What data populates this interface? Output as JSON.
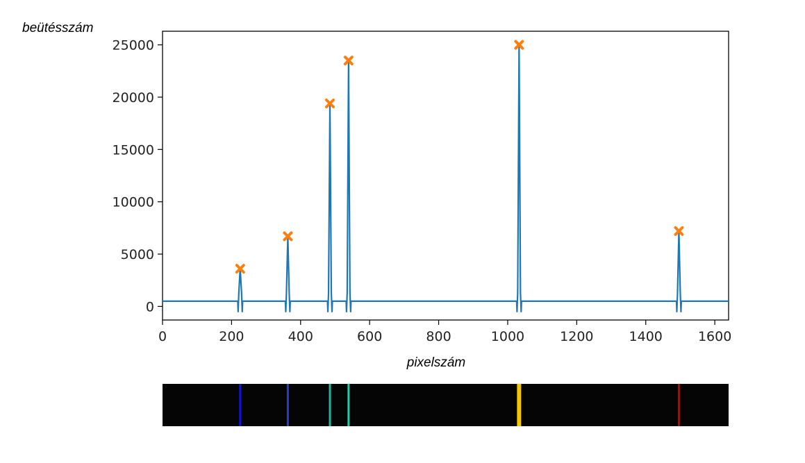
{
  "chart_data": {
    "type": "line",
    "xlabel": "pixelszám",
    "ylabel": "beütésszám",
    "xlim": [
      0,
      1640
    ],
    "ylim": [
      -1300,
      26300
    ],
    "x_ticks": [
      0,
      200,
      400,
      600,
      800,
      1000,
      1200,
      1400,
      1600
    ],
    "y_ticks": [
      0,
      5000,
      10000,
      15000,
      20000,
      25000
    ],
    "grid": false,
    "line_color": "#1f77b4",
    "marker_color": "#ff7f0e",
    "baseline": 500,
    "series": [
      {
        "peaks": [
          {
            "x": 225,
            "y": 3600
          },
          {
            "x": 363,
            "y": 6700
          },
          {
            "x": 485,
            "y": 19400
          },
          {
            "x": 539,
            "y": 23500
          },
          {
            "x": 1033,
            "y": 25000
          },
          {
            "x": 1496,
            "y": 7200
          }
        ]
      }
    ],
    "spectrum_strip": {
      "background": "#050505",
      "lines": [
        {
          "x": 225,
          "color": "#1414d8"
        },
        {
          "x": 363,
          "color": "#2a3fc8"
        },
        {
          "x": 485,
          "color": "#20b8a0"
        },
        {
          "x": 539,
          "color": "#2ac8a8"
        },
        {
          "x": 1033,
          "color": "#f5c400"
        },
        {
          "x": 1496,
          "color": "#8a1a12"
        }
      ]
    }
  }
}
